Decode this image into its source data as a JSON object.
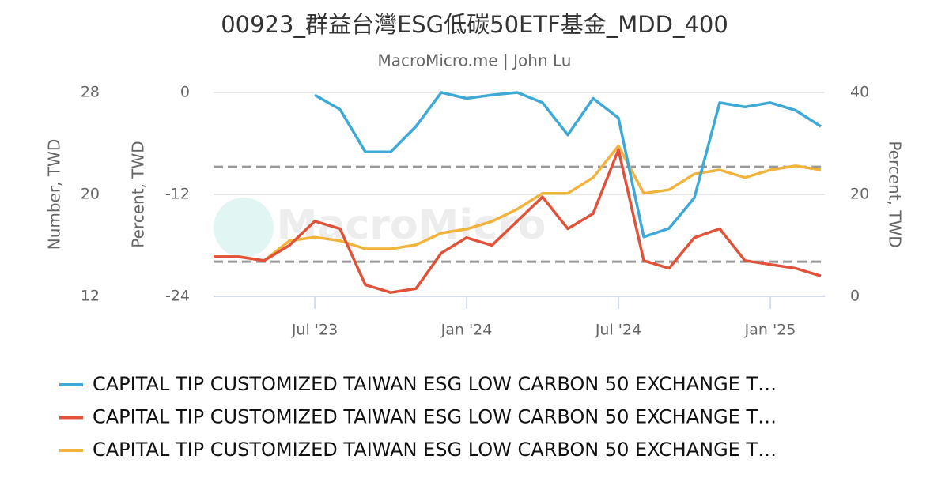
{
  "chart_data": {
    "type": "line",
    "title": "00923_群益台灣ESG低碳50ETF基金_MDD_400",
    "subtitle": "MacroMicro.me | John Lu",
    "watermark": "MacroMicro",
    "x": [
      "2023-03",
      "2023-04",
      "2023-05",
      "2023-06",
      "2023-07",
      "2023-08",
      "2023-09",
      "2023-10",
      "2023-11",
      "2023-12",
      "2024-01",
      "2024-02",
      "2024-03",
      "2024-04",
      "2024-05",
      "2024-06",
      "2024-07",
      "2024-08",
      "2024-09",
      "2024-10",
      "2024-11",
      "2024-12",
      "2025-01",
      "2025-02",
      "2025-03"
    ],
    "xlim": [
      "2023-03",
      "2025-03"
    ],
    "xticks": [
      {
        "value": "2023-07",
        "label": "Jul '23"
      },
      {
        "value": "2024-01",
        "label": "Jan '24"
      },
      {
        "value": "2024-07",
        "label": "Jul '24"
      },
      {
        "value": "2025-01",
        "label": "Jan '25"
      }
    ],
    "y3label": "Number, TWD",
    "y3lim": [
      12,
      28
    ],
    "y3ticks": [
      12,
      20,
      28
    ],
    "ylabel": "Percent, TWD",
    "ylim": [
      -24,
      0
    ],
    "yticks": [
      -24,
      -12,
      0
    ],
    "y2label": "Percent, TWD",
    "y2lim": [
      0,
      40
    ],
    "y2ticks": [
      0,
      20,
      40
    ],
    "grid": true,
    "plot_lines": [
      {
        "value": 25.4,
        "axis": "y2",
        "color": "#999999"
      },
      {
        "value": 6.8,
        "axis": "y2",
        "color": "#999999"
      }
    ],
    "series": [
      {
        "name": "CAPITAL TIP CUSTOMIZED TAIWAN ESG LOW CARBON 50 EXCHANGE T…",
        "color": "#3ea9d6",
        "axis": "y",
        "values": [
          null,
          null,
          null,
          null,
          -0.3,
          -2,
          -7,
          -7,
          -4,
          0,
          -0.7,
          -0.3,
          0,
          -1.2,
          -5,
          -0.7,
          -3,
          -17,
          -16,
          -12.4,
          -1.2,
          -1.7,
          -1.2,
          -2.1,
          -4
        ]
      },
      {
        "name": "CAPITAL TIP CUSTOMIZED TAIWAN ESG LOW CARBON 50 EXCHANGE T…",
        "color": "#e0533a",
        "axis": "y3",
        "values": [
          15.1,
          15.1,
          14.8,
          16,
          17.9,
          17.3,
          12.9,
          12.3,
          12.6,
          15.4,
          16.6,
          16,
          17.9,
          19.8,
          17.3,
          18.5,
          23.5,
          14.8,
          14.2,
          16.6,
          17.3,
          14.8,
          14.5,
          14.2,
          13.6
        ]
      },
      {
        "name": "CAPITAL TIP CUSTOMIZED TAIWAN ESG LOW CARBON 50 EXCHANGE T…",
        "color": "#f2b33d",
        "axis": "y2",
        "values": [
          7.8,
          7.8,
          7.0,
          10.9,
          11.6,
          10.9,
          9.3,
          9.3,
          10.1,
          12.4,
          13.2,
          14.7,
          17.1,
          20.2,
          20.2,
          23.3,
          29.5,
          20.2,
          20.9,
          24,
          24.8,
          23.3,
          24.8,
          25.6,
          24.8
        ]
      }
    ]
  }
}
